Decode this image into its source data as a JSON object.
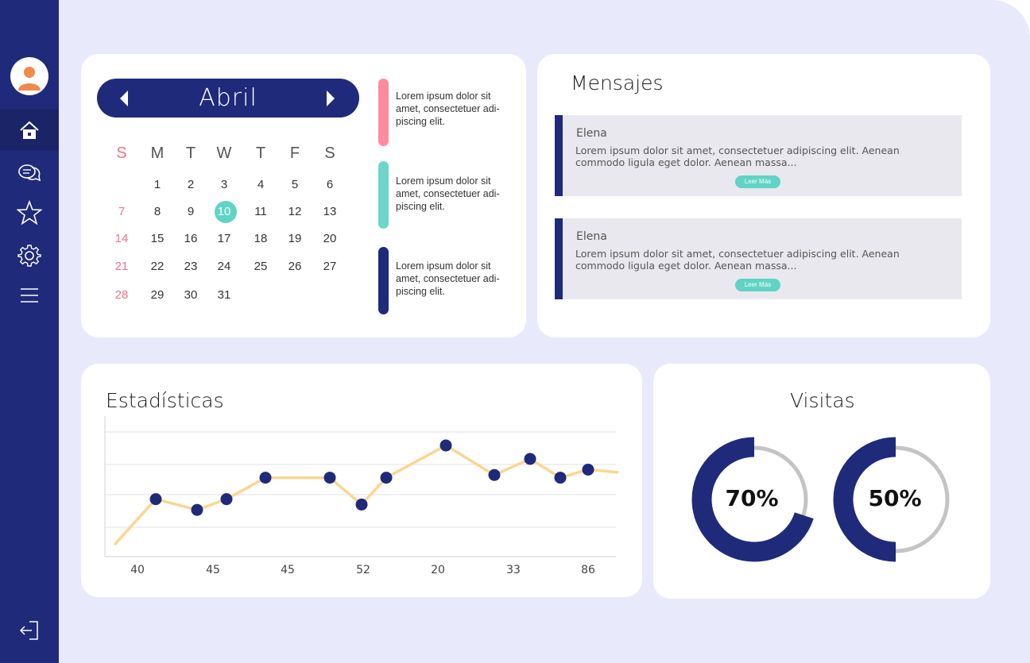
{
  "sidebar": {
    "items": [
      {
        "icon": "home-icon",
        "active": true
      },
      {
        "icon": "chat-icon",
        "active": false
      },
      {
        "icon": "star-icon",
        "active": false
      },
      {
        "icon": "gear-icon",
        "active": false
      },
      {
        "icon": "menu-icon",
        "active": false
      }
    ],
    "logout_icon": "logout-icon"
  },
  "calendar": {
    "month": "Abril",
    "weekdays": [
      "S",
      "M",
      "T",
      "W",
      "T",
      "F",
      "S"
    ],
    "weeks": [
      [
        "",
        "1",
        "2",
        "3",
        "4",
        "5",
        "6"
      ],
      [
        "7",
        "8",
        "9",
        "10",
        "11",
        "12",
        "13"
      ],
      [
        "14",
        "15",
        "16",
        "17",
        "18",
        "19",
        "20"
      ],
      [
        "21",
        "22",
        "23",
        "24",
        "25",
        "26",
        "27"
      ],
      [
        "28",
        "29",
        "30",
        "31",
        "",
        "",
        ""
      ]
    ],
    "today": "10"
  },
  "events": [
    {
      "text": "Lorem ipsum dolor sit amet, consectetuer adi-piscing elit.",
      "color": "#ff8aa0"
    },
    {
      "text": "Lorem ipsum dolor sit amet, consectetuer adi-piscing elit.",
      "color": "#5fd3c5"
    },
    {
      "text": "Lorem ipsum dolor sit amet, consectetuer adi-piscing elit.",
      "color": "#1f2a7a"
    }
  ],
  "messages": {
    "title": "Mensajes",
    "items": [
      {
        "author": "Elena",
        "body": "Lorem ipsum dolor sit amet, consectetuer adipiscing elit. Aenean commodo ligula eget dolor. Aenean massa...",
        "button": "Leer Más"
      },
      {
        "author": "Elena",
        "body": "Lorem ipsum dolor sit amet, consectetuer adipiscing elit. Aenean commodo ligula eget dolor. Aenean massa...",
        "button": "Leer Más"
      }
    ]
  },
  "stats": {
    "title": "Estadísticas"
  },
  "visits": {
    "title": "Visitas",
    "items": [
      {
        "label": "70%",
        "value": 70
      },
      {
        "label": "50%",
        "value": 50
      }
    ]
  },
  "colors": {
    "navy": "#1f2a7a",
    "teal": "#5fd3c5",
    "pink": "#f2708a",
    "line": "#fcd592",
    "track": "#c4c4c4",
    "background": "#e9e9fc"
  },
  "chart_data": {
    "type": "line",
    "title": "Estadísticas",
    "x_tick_labels": [
      "40",
      "45",
      "45",
      "52",
      "20",
      "33",
      "86"
    ],
    "values": [
      5,
      22,
      18,
      22,
      30,
      30,
      20,
      30,
      42,
      31,
      37,
      30,
      33,
      32
    ],
    "markers": [
      false,
      true,
      true,
      true,
      true,
      true,
      true,
      true,
      true,
      true,
      true,
      true,
      true,
      false
    ],
    "ylim": [
      0,
      50
    ],
    "grid": true
  }
}
